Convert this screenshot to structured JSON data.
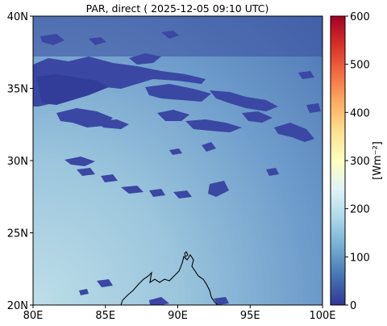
{
  "title": "PAR, direct ( 2025-12-05 09:10 UTC)",
  "map": {
    "x_ticks": [
      {
        "value": 80,
        "label": "80E"
      },
      {
        "value": 85,
        "label": "85E"
      },
      {
        "value": 90,
        "label": "90E"
      },
      {
        "value": 95,
        "label": "95E"
      },
      {
        "value": 100,
        "label": "100E"
      }
    ],
    "y_ticks": [
      {
        "value": 20,
        "label": "20N"
      },
      {
        "value": 25,
        "label": "25N"
      },
      {
        "value": 30,
        "label": "30N"
      },
      {
        "value": 35,
        "label": "35N"
      },
      {
        "value": 40,
        "label": "40N"
      }
    ],
    "lon_range": [
      80,
      100
    ],
    "lat_range": [
      20,
      40
    ]
  },
  "colorbar": {
    "label": "[Wm⁻²]",
    "range": [
      0,
      600
    ],
    "ticks": [
      {
        "value": 0,
        "label": "0"
      },
      {
        "value": 100,
        "label": "100"
      },
      {
        "value": 200,
        "label": "200"
      },
      {
        "value": 300,
        "label": "300"
      },
      {
        "value": 400,
        "label": "400"
      },
      {
        "value": 500,
        "label": "500"
      },
      {
        "value": 600,
        "label": "600"
      }
    ],
    "colormap": [
      "#313695",
      "#4575b4",
      "#74add1",
      "#abd9e9",
      "#e0f3f8",
      "#ffffbf",
      "#fee090",
      "#fdae61",
      "#f46d43",
      "#d73027",
      "#a50026"
    ]
  }
}
